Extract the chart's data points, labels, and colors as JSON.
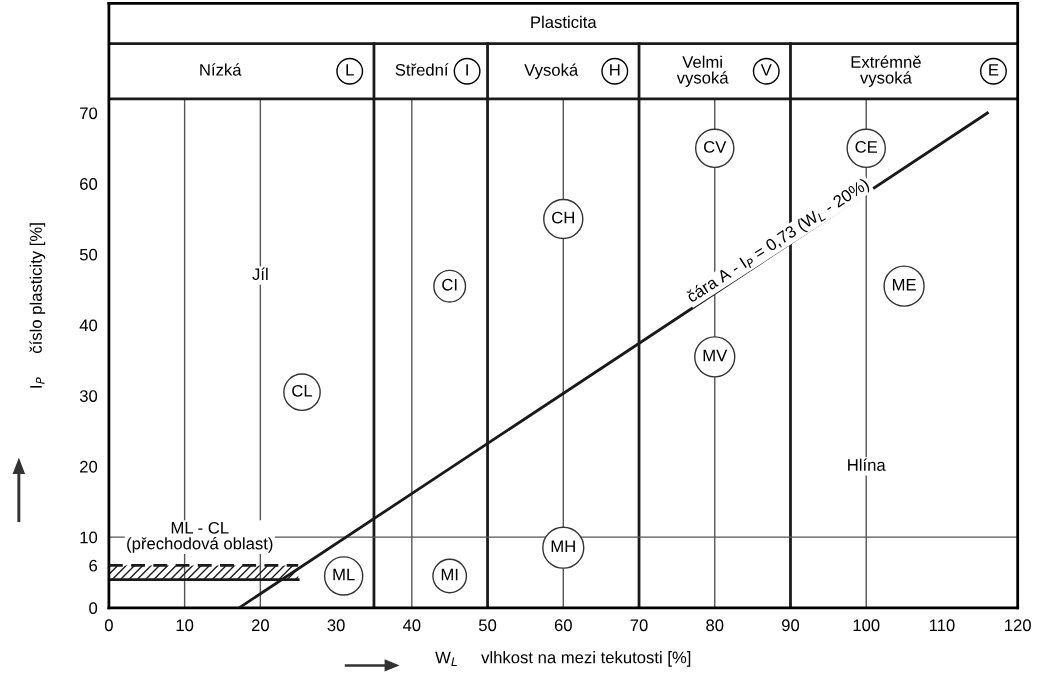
{
  "chart_data": {
    "type": "line",
    "xlabel": "W$_{L}$     vlhkost na mezi tekutosti [%]",
    "ylabel": "I$_{P}$     číslo plasticity [%]",
    "x": [
      17.2,
      116
    ],
    "series": [
      {
        "color": "#1a1a1a",
        "values": [
          0,
          70
        ]
      },
      {
        "color": "#1a1a1a",
        "line_style": "dashed",
        "x": [
          0,
          25
        ],
        "values": [
          6,
          6
        ],
        "lower": [
          4,
          4
        ],
        "upper": [
          6,
          6
        ]
      }
    ],
    "xlim": [
      0,
      120
    ],
    "ylim": [
      0,
      85.5
    ],
    "xticks": [
      0,
      10,
      20,
      30,
      40,
      50,
      60,
      70,
      80,
      90,
      100,
      110,
      120
    ],
    "yticks": [
      0,
      6,
      10,
      20,
      30,
      40,
      50,
      60,
      70
    ],
    "ref_lines": [
      {
        "axis": "x",
        "value": 35,
        "color": "#1a1a1a"
      },
      {
        "axis": "x",
        "value": 50,
        "color": "#1a1a1a"
      },
      {
        "axis": "x",
        "value": 70,
        "color": "#1a1a1a"
      },
      {
        "axis": "x",
        "value": 90,
        "color": "#1a1a1a"
      },
      {
        "axis": "x",
        "value": 10,
        "color": "#555555"
      },
      {
        "axis": "x",
        "value": 20,
        "color": "#555555"
      },
      {
        "axis": "x",
        "value": 40,
        "color": "#555555"
      },
      {
        "axis": "x",
        "value": 60,
        "color": "#555555"
      },
      {
        "axis": "x",
        "value": 80,
        "color": "#555555"
      },
      {
        "axis": "x",
        "value": 100,
        "color": "#555555"
      },
      {
        "axis": "y",
        "value": 10,
        "color": "#555555"
      },
      {
        "axis": "y",
        "value": 4,
        "color": "#1a1a1a"
      },
      {
        "axis": "y",
        "value": 72,
        "color": "#1a1a1a"
      },
      {
        "axis": "y",
        "value": 79.8,
        "color": "#1a1a1a"
      }
    ],
    "annotations": [
      "Plasticita",
      "Nízká",
      "Střední",
      "Vysoká",
      "Velmi\nvysoká",
      "Extrémně\nvysoká",
      "L",
      "I",
      "H",
      "V",
      "E",
      {
        "text": "CL",
        "x": 25.5,
        "y": 30.5
      },
      {
        "text": "ML",
        "x": 31,
        "y": 4.5
      },
      {
        "text": "CI",
        "x": 45,
        "y": 45.5
      },
      {
        "text": "MI",
        "x": 45,
        "y": 4.5
      },
      {
        "text": "CH",
        "x": 60,
        "y": 55
      },
      {
        "text": "MH",
        "x": 60,
        "y": 8.5
      },
      {
        "text": "CV",
        "x": 80,
        "y": 65
      },
      {
        "text": "MV",
        "x": 80,
        "y": 35.5
      },
      {
        "text": "CE",
        "x": 100,
        "y": 65
      },
      {
        "text": "ME",
        "x": 105,
        "y": 45.5
      },
      {
        "text": "Jíl",
        "x": 20,
        "y": 47
      },
      {
        "text": "Hlína",
        "x": 100,
        "y": 20
      },
      {
        "text": "ML - CL\n(přechodová oblast)",
        "x": 12,
        "y": 10
      },
      {
        "text": "čára A - I$_{P}$ = 0,73 (W$_{L}$ - 20%)",
        "x": 89,
        "y": 50.9
      }
    ],
    "grid": false,
    "legend": false
  }
}
